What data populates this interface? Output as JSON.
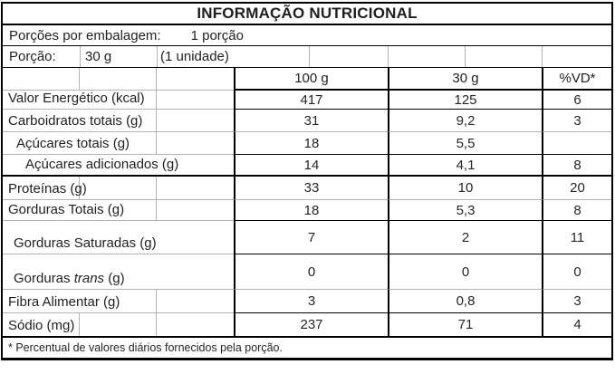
{
  "title": "INFORMAÇÃO NUTRICIONAL",
  "servings": {
    "label": "Porções por embalagem:",
    "value": "1 porção"
  },
  "portion": {
    "label": "Porção:",
    "amount": "30 g",
    "unit_note": "(1 unidade)"
  },
  "table": {
    "columns": {
      "per100g": "100 g",
      "per30g": "30 g",
      "vd": "%VD*"
    },
    "rows": [
      {
        "label": "Valor Energético (kcal)",
        "per100g": "417",
        "per30g": "125",
        "vd": "6"
      },
      {
        "label": "Carboidratos totais (g)",
        "per100g": "31",
        "per30g": "9,2",
        "vd": "3"
      },
      {
        "label": "Açúcares totais (g)",
        "per100g": "18",
        "per30g": "5,5",
        "vd": ""
      },
      {
        "label": "Açúcares adicionados (g)",
        "per100g": "14",
        "per30g": "4,1",
        "vd": "8"
      },
      {
        "label": "Proteínas (g)",
        "per100g": "33",
        "per30g": "10",
        "vd": "20"
      },
      {
        "label": "Gorduras Totais (g)",
        "per100g": "18",
        "per30g": "5,3",
        "vd": "8"
      },
      {
        "label": "Gorduras Saturadas (g)",
        "per100g": "7",
        "per30g": "2",
        "vd": "11"
      },
      {
        "label_pre": "Gorduras ",
        "label_italic": "trans",
        "label_post": " (g)",
        "per100g": "0",
        "per30g": "0",
        "vd": "0"
      },
      {
        "label": "Fibra Alimentar (g)",
        "per100g": "3",
        "per30g": "0,8",
        "vd": "3"
      },
      {
        "label": "Sódio (mg)",
        "per100g": "237",
        "per30g": "71",
        "vd": "4"
      }
    ]
  },
  "footnote": "* Percentual de valores diários fornecidos pela porção."
}
